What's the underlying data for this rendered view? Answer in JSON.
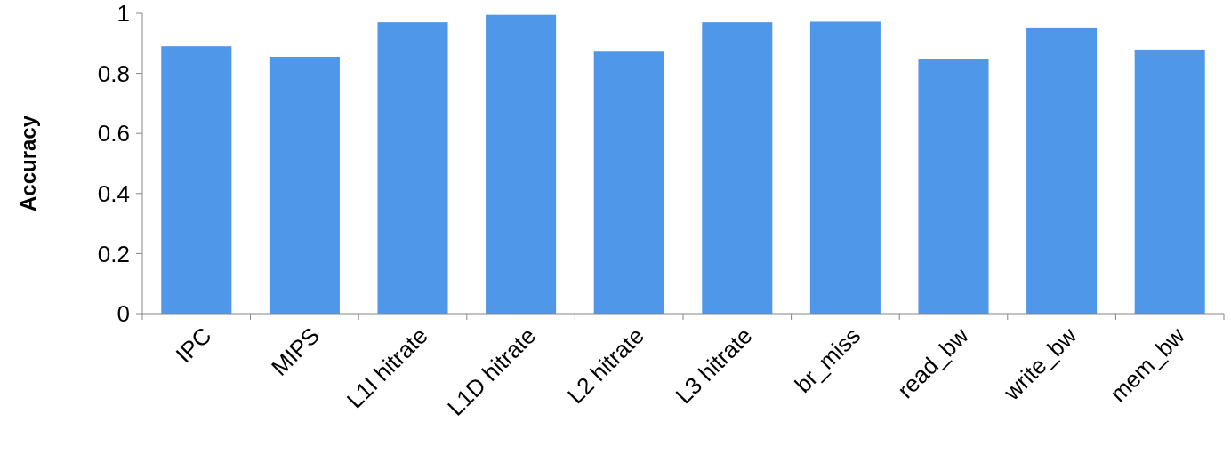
{
  "chart_data": {
    "type": "bar",
    "ylabel": "Accuracy",
    "categories": [
      "IPC",
      "MIPS",
      "L1I hitrate",
      "L1D hitrate",
      "L2 hitrate",
      "L3 hitrate",
      "br_miss",
      "read_bw",
      "write_bw",
      "mem_bw"
    ],
    "values": [
      0.89,
      0.855,
      0.97,
      0.995,
      0.875,
      0.97,
      0.972,
      0.849,
      0.953,
      0.879
    ],
    "color": "#4f97e8",
    "ylim": [
      0,
      1
    ],
    "yticks": [
      0,
      0.2,
      0.4,
      0.6,
      0.8,
      1
    ],
    "grid": false
  }
}
